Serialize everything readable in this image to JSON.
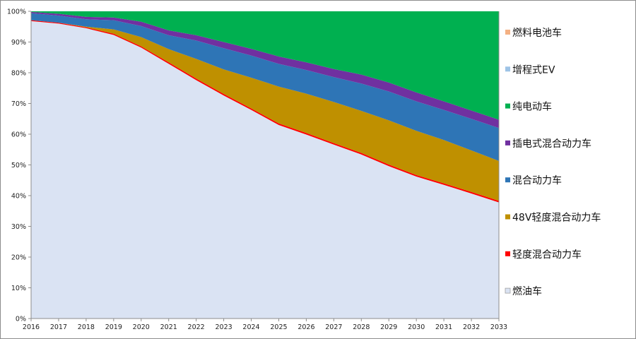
{
  "chart_data": {
    "type": "area",
    "stacked": true,
    "percent_stacked": true,
    "title": "",
    "xlabel": "",
    "ylabel": "",
    "ylim": [
      0,
      100
    ],
    "y_ticks": [
      "0%",
      "10%",
      "20%",
      "30%",
      "40%",
      "50%",
      "60%",
      "70%",
      "80%",
      "90%",
      "100%"
    ],
    "x": [
      "2016",
      "2017",
      "2018",
      "2019",
      "2020",
      "2021",
      "2022",
      "2023",
      "2024",
      "2025",
      "2026",
      "2027",
      "2028",
      "2029",
      "2030",
      "2031",
      "2032",
      "2033"
    ],
    "grid": false,
    "legend_position": "right",
    "series": [
      {
        "name": "燃油车",
        "color": "#dae3f3",
        "values": [
          96.8,
          96.0,
          94.5,
          92.3,
          88.2,
          82.9,
          77.6,
          72.6,
          67.9,
          63.0,
          59.9,
          56.6,
          53.4,
          49.6,
          46.2,
          43.5,
          40.7,
          37.8
        ]
      },
      {
        "name": "轻度混合动力车",
        "color": "#ff0000",
        "values": [
          0.3,
          0.3,
          0.3,
          0.4,
          0.4,
          0.5,
          0.5,
          0.5,
          0.5,
          0.5,
          0.5,
          0.5,
          0.5,
          0.5,
          0.5,
          0.5,
          0.5,
          0.5
        ]
      },
      {
        "name": "48V轻度混合动力车",
        "color": "#bf9000",
        "values": [
          0.0,
          0.0,
          0.2,
          1.4,
          3.0,
          4.3,
          6.4,
          8.0,
          10.0,
          12.0,
          12.8,
          13.4,
          13.7,
          14.4,
          14.4,
          14.1,
          13.5,
          13.0
        ]
      },
      {
        "name": "混合动力车",
        "color": "#2e75b6",
        "values": [
          2.3,
          2.3,
          2.4,
          3.0,
          3.6,
          4.5,
          6.0,
          6.9,
          7.2,
          7.4,
          7.7,
          8.1,
          8.9,
          9.4,
          9.6,
          9.8,
          10.3,
          10.7
        ]
      },
      {
        "name": "插电式混合动力车",
        "color": "#7030a0",
        "values": [
          0.4,
          0.6,
          0.8,
          0.9,
          1.4,
          1.6,
          1.7,
          2.0,
          2.2,
          2.4,
          2.5,
          2.6,
          2.9,
          2.9,
          2.9,
          2.8,
          2.7,
          2.7
        ]
      },
      {
        "name": "纯电动车",
        "color": "#00b050",
        "values": [
          0.2,
          0.8,
          1.8,
          2.0,
          3.4,
          6.2,
          7.8,
          10.0,
          12.2,
          14.7,
          16.6,
          18.8,
          20.6,
          23.2,
          26.4,
          29.3,
          32.3,
          35.3
        ]
      },
      {
        "name": "增程式EV",
        "color": "#9dc3e6",
        "values": [
          0,
          0,
          0,
          0,
          0,
          0,
          0,
          0,
          0,
          0,
          0,
          0,
          0,
          0,
          0,
          0,
          0,
          0
        ]
      },
      {
        "name": "燃料电池车",
        "color": "#f4b183",
        "values": [
          0,
          0,
          0,
          0,
          0,
          0,
          0,
          0,
          0,
          0,
          0,
          0,
          0,
          0,
          0,
          0,
          0,
          0
        ]
      }
    ],
    "legend_order": [
      "燃料电池车",
      "增程式EV",
      "纯电动车",
      "插电式混合动力车",
      "混合动力车",
      "48V轻度混合动力车",
      "轻度混合动力车",
      "燃油车"
    ]
  }
}
